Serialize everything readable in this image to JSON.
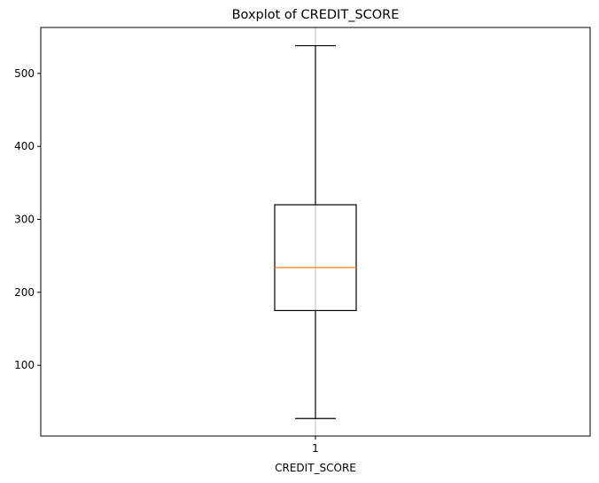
{
  "chart_data": {
    "type": "boxplot",
    "title": "Boxplot of CREDIT_SCORE",
    "xlabel": "CREDIT_SCORE",
    "ylabel": "",
    "categories": [
      "1"
    ],
    "ylim": [
      3,
      563
    ],
    "yticks": [
      100,
      200,
      300,
      400,
      500
    ],
    "grid": {
      "x": true,
      "y": false
    },
    "series": [
      {
        "category": "1",
        "whisker_low": 27,
        "q1": 175,
        "median": 234,
        "q3": 320,
        "whisker_high": 538
      }
    ],
    "colors": {
      "box": "#000000",
      "median": "#ff7f0e",
      "grid": "#b0b0b0",
      "axes": "#000000"
    }
  }
}
